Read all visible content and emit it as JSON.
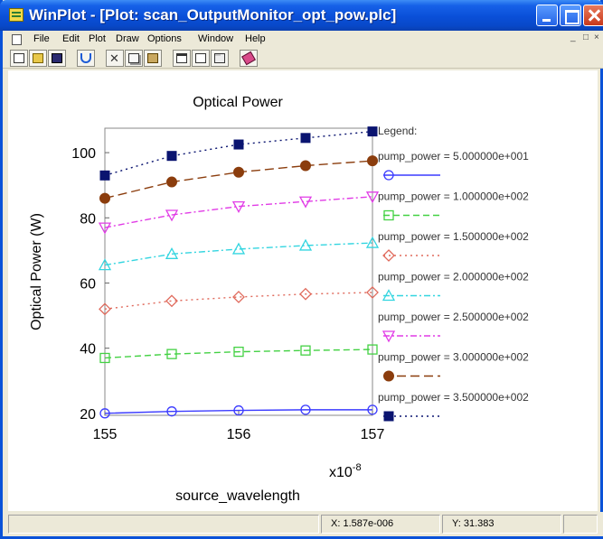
{
  "window": {
    "title": "WinPlot - [Plot: scan_OutputMonitor_opt_pow.plc]"
  },
  "menu": {
    "items": [
      "File",
      "Edit",
      "Plot",
      "Draw",
      "Options",
      "Window",
      "Help"
    ],
    "mdi_controls": "_                                         "
  },
  "toolbar": {
    "icons": [
      "new-icon",
      "open-icon",
      "save-icon",
      "undo-icon",
      "cut-icon",
      "copy-icon",
      "paste-icon",
      "window-icon",
      "chart-icon",
      "scale-icon",
      "eraser-icon"
    ]
  },
  "status": {
    "x_readout": "X: 1.587e-006",
    "y_readout": "Y: 31.383"
  },
  "colors": {
    "titlebar": "#0a4fd8",
    "chrome": "#ece9d8"
  },
  "chart_data": {
    "type": "line",
    "title": "Optical Power",
    "xlabel": "source_wavelength",
    "ylabel": "Optical Power (W)",
    "x_multiplier_label": "x10",
    "x_multiplier_exp": "-8",
    "x": [
      155,
      155.5,
      156,
      156.5,
      157
    ],
    "xlim": [
      155,
      157
    ],
    "ylim": [
      19.4,
      107.5
    ],
    "x_ticks": [
      155,
      156,
      157
    ],
    "y_ticks": [
      20,
      40,
      60,
      80,
      100
    ],
    "legend_title": "Legend:",
    "legend_placement": "right",
    "grid": false,
    "series": [
      {
        "name": "pump_power = 5.000000e+001",
        "color": "#3b3bff",
        "marker": "circle",
        "dash": "solid",
        "values": [
          20.0,
          20.6,
          20.9,
          21.1,
          21.1
        ]
      },
      {
        "name": "pump_power = 1.000000e+002",
        "color": "#43d143",
        "marker": "square-open",
        "dash": "dash",
        "values": [
          37.0,
          38.2,
          38.9,
          39.3,
          39.6
        ]
      },
      {
        "name": "pump_power = 1.500000e+002",
        "color": "#e06a5c",
        "marker": "diamond",
        "dash": "dot",
        "values": [
          52.0,
          54.5,
          55.7,
          56.6,
          57.1
        ]
      },
      {
        "name": "pump_power = 2.000000e+002",
        "color": "#33d5e0",
        "marker": "triangle-up",
        "dash": "dashdot",
        "values": [
          65.5,
          68.9,
          70.4,
          71.5,
          72.3
        ]
      },
      {
        "name": "pump_power = 2.500000e+002",
        "color": "#e13ce6",
        "marker": "triangle-down",
        "dash": "dashdot",
        "values": [
          77.0,
          80.9,
          83.5,
          85.0,
          86.5
        ]
      },
      {
        "name": "pump_power = 3.000000e+002",
        "color": "#8b3d0d",
        "marker": "circle-filled",
        "dash": "longdash",
        "values": [
          86.0,
          91.0,
          94.0,
          96.0,
          97.5
        ]
      },
      {
        "name": "pump_power = 3.500000e+002",
        "color": "#0a1470",
        "marker": "square-filled",
        "dash": "dot",
        "values": [
          93.0,
          99.0,
          102.5,
          104.5,
          106.5
        ]
      }
    ]
  }
}
